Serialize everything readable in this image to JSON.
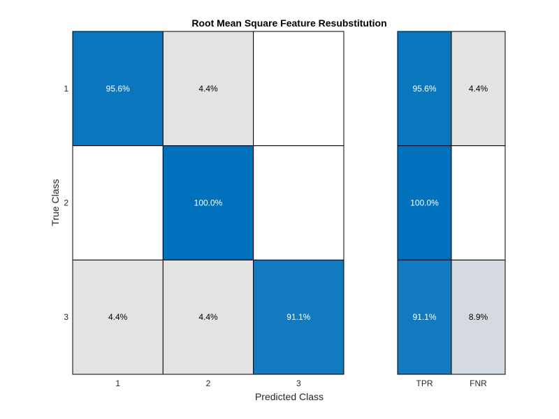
{
  "chart_data": {
    "type": "heatmap",
    "title": "Root Mean Square Feature Resubstitution",
    "xlabel": "Predicted Class",
    "ylabel": "True Class",
    "row_labels": [
      "1",
      "2",
      "3"
    ],
    "col_labels": [
      "1",
      "2",
      "3"
    ],
    "values": [
      [
        95.6,
        4.4,
        null
      ],
      [
        null,
        100.0,
        null
      ],
      [
        4.4,
        4.4,
        91.1
      ]
    ],
    "summary_col_labels": [
      "TPR",
      "FNR"
    ],
    "summary_values": [
      [
        95.6,
        4.4
      ],
      [
        100.0,
        null
      ],
      [
        91.1,
        8.9
      ]
    ],
    "value_suffix": "%",
    "colors": {
      "high": "#0072bd",
      "low": "#f9ece6",
      "empty": "#ffffff",
      "grid": "#000000",
      "text_on_dark": "#ffffff",
      "text_on_light": "#000000"
    }
  }
}
